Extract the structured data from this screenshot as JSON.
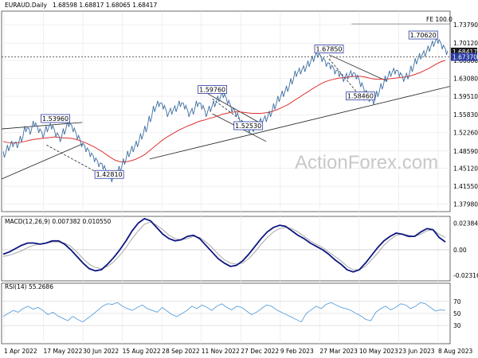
{
  "chart_data": [
    {
      "type": "line",
      "panel": "price",
      "symbol_label": "EURAUD.Daily",
      "ohlc_header": "1.68598 1.68817 1.68065 1.68417",
      "ylim": [
        1.365,
        1.765
      ],
      "y_ticks": [
        "1.73790",
        "1.70120",
        "1.66660",
        "1.63080",
        "1.59510",
        "1.55830",
        "1.52260",
        "1.48590",
        "1.45120",
        "1.41550",
        "1.37980"
      ],
      "last_prices": [
        "1.68417",
        "1.67370"
      ],
      "fe_label": "FE 100.0",
      "fe_level": 1.7395,
      "horizontal_level": 1.6737,
      "annotations": [
        {
          "text": "1.53960",
          "x": 0.12,
          "y": 1.5396
        },
        {
          "text": "1.42810",
          "x": 0.24,
          "y": 1.4281
        },
        {
          "text": "1.59760",
          "x": 0.47,
          "y": 1.5976
        },
        {
          "text": "1.52530",
          "x": 0.55,
          "y": 1.5253
        },
        {
          "text": "1.67850",
          "x": 0.73,
          "y": 1.6785
        },
        {
          "text": "1.58460",
          "x": 0.8,
          "y": 1.5846
        },
        {
          "text": "1.70620",
          "x": 0.94,
          "y": 1.7062
        }
      ],
      "price_series": [
        1.479,
        1.492,
        1.5,
        1.498,
        1.51,
        1.53,
        1.525,
        1.54,
        1.528,
        1.518,
        1.53,
        1.535,
        1.52,
        1.51,
        1.525,
        1.54,
        1.53,
        1.515,
        1.5,
        1.49,
        1.48,
        1.47,
        1.46,
        1.455,
        1.44,
        1.43,
        1.437,
        1.45,
        1.465,
        1.48,
        1.49,
        1.5,
        1.515,
        1.53,
        1.55,
        1.57,
        1.58,
        1.575,
        1.56,
        1.565,
        1.57,
        1.58,
        1.575,
        1.56,
        1.565,
        1.58,
        1.575,
        1.56,
        1.57,
        1.58,
        1.59,
        1.598,
        1.585,
        1.57,
        1.56,
        1.545,
        1.535,
        1.527,
        1.53,
        1.54,
        1.545,
        1.55,
        1.56,
        1.575,
        1.59,
        1.6,
        1.61,
        1.625,
        1.64,
        1.645,
        1.65,
        1.66,
        1.67,
        1.678,
        1.67,
        1.66,
        1.655,
        1.645,
        1.64,
        1.63,
        1.635,
        1.64,
        1.635,
        1.62,
        1.605,
        1.59,
        1.585,
        1.6,
        1.615,
        1.63,
        1.64,
        1.645,
        1.64,
        1.63,
        1.635,
        1.65,
        1.665,
        1.675,
        1.68,
        1.69,
        1.7,
        1.706,
        1.695,
        1.684
      ],
      "ma_series": [
        1.505,
        1.503,
        1.502,
        1.502,
        1.503,
        1.505,
        1.507,
        1.509,
        1.51,
        1.511,
        1.512,
        1.513,
        1.514,
        1.513,
        1.512,
        1.512,
        1.511,
        1.509,
        1.506,
        1.503,
        1.499,
        1.495,
        1.49,
        1.485,
        1.479,
        1.473,
        1.468,
        1.465,
        1.464,
        1.465,
        1.467,
        1.47,
        1.474,
        1.479,
        1.486,
        1.493,
        1.5,
        1.507,
        1.513,
        1.518,
        1.523,
        1.528,
        1.532,
        1.536,
        1.539,
        1.543,
        1.546,
        1.548,
        1.551,
        1.553,
        1.556,
        1.559,
        1.561,
        1.563,
        1.564,
        1.564,
        1.563,
        1.562,
        1.561,
        1.561,
        1.561,
        1.562,
        1.563,
        1.566,
        1.569,
        1.573,
        1.577,
        1.582,
        1.588,
        1.593,
        1.599,
        1.604,
        1.61,
        1.615,
        1.62,
        1.624,
        1.627,
        1.629,
        1.631,
        1.632,
        1.633,
        1.634,
        1.635,
        1.635,
        1.634,
        1.632,
        1.63,
        1.629,
        1.629,
        1.629,
        1.63,
        1.631,
        1.632,
        1.633,
        1.634,
        1.636,
        1.639,
        1.642,
        1.646,
        1.65,
        1.655,
        1.66,
        1.664,
        1.667
      ],
      "trendlines": [
        {
          "name": "rising-support",
          "from": [
            0.33,
            1.47
          ],
          "to": [
            1.0,
            1.615
          ],
          "style": "solid"
        },
        {
          "name": "early-channel-upper",
          "from": [
            0.0,
            1.53
          ],
          "to": [
            0.18,
            1.543
          ],
          "style": "solid"
        },
        {
          "name": "early-channel-lower",
          "from": [
            0.0,
            1.43
          ],
          "to": [
            0.18,
            1.5
          ],
          "style": "solid"
        },
        {
          "name": "dashed-descent",
          "from": [
            0.1,
            1.498
          ],
          "to": [
            0.24,
            1.43
          ],
          "style": "dashed"
        },
        {
          "name": "wedge-upper",
          "from": [
            0.46,
            1.6
          ],
          "to": [
            0.58,
            1.54
          ],
          "style": "solid"
        },
        {
          "name": "wedge-lower",
          "from": [
            0.47,
            1.56
          ],
          "to": [
            0.59,
            1.505
          ],
          "style": "solid"
        },
        {
          "name": "dashed-mid",
          "from": [
            0.47,
            1.59
          ],
          "to": [
            0.56,
            1.53
          ],
          "style": "dashed"
        },
        {
          "name": "channel-2-upper",
          "from": [
            0.73,
            1.678
          ],
          "to": [
            0.86,
            1.625
          ],
          "style": "solid"
        },
        {
          "name": "channel-2-dashed",
          "from": [
            0.73,
            1.67
          ],
          "to": [
            0.81,
            1.584
          ],
          "style": "dashed"
        }
      ]
    },
    {
      "type": "line",
      "panel": "macd",
      "title": "MACD(12,26,9) 0.007382 0.010550",
      "y_ticks": [
        "0.023841",
        "0.00",
        "-0.023164"
      ],
      "ylim": [
        -0.028,
        0.03
      ],
      "macd_series": [
        -0.004,
        -0.002,
        0.001,
        0.004,
        0.006,
        0.006,
        0.005,
        0.006,
        0.008,
        0.008,
        0.005,
        0.0,
        -0.006,
        -0.012,
        -0.017,
        -0.019,
        -0.018,
        -0.013,
        -0.007,
        0.0,
        0.008,
        0.017,
        0.024,
        0.028,
        0.026,
        0.02,
        0.014,
        0.01,
        0.008,
        0.009,
        0.012,
        0.013,
        0.01,
        0.004,
        -0.002,
        -0.008,
        -0.012,
        -0.015,
        -0.014,
        -0.01,
        -0.004,
        0.003,
        0.01,
        0.016,
        0.02,
        0.022,
        0.021,
        0.017,
        0.013,
        0.01,
        0.006,
        0.003,
        0.0,
        -0.004,
        -0.009,
        -0.013,
        -0.018,
        -0.02,
        -0.018,
        -0.012,
        -0.005,
        0.002,
        0.008,
        0.012,
        0.015,
        0.014,
        0.012,
        0.012,
        0.016,
        0.019,
        0.018,
        0.011,
        0.007
      ],
      "signal_series": [
        -0.006,
        -0.005,
        -0.003,
        -0.001,
        0.002,
        0.004,
        0.005,
        0.006,
        0.007,
        0.007,
        0.006,
        0.003,
        -0.002,
        -0.008,
        -0.013,
        -0.016,
        -0.017,
        -0.015,
        -0.011,
        -0.005,
        0.002,
        0.01,
        0.017,
        0.023,
        0.025,
        0.022,
        0.018,
        0.013,
        0.01,
        0.009,
        0.01,
        0.012,
        0.011,
        0.007,
        0.002,
        -0.004,
        -0.009,
        -0.012,
        -0.013,
        -0.012,
        -0.008,
        -0.002,
        0.005,
        0.011,
        0.016,
        0.019,
        0.02,
        0.019,
        0.016,
        0.012,
        0.008,
        0.005,
        0.002,
        -0.002,
        -0.006,
        -0.01,
        -0.015,
        -0.018,
        -0.018,
        -0.015,
        -0.009,
        -0.003,
        0.004,
        0.009,
        0.013,
        0.014,
        0.013,
        0.012,
        0.014,
        0.017,
        0.018,
        0.014,
        0.011
      ]
    },
    {
      "type": "line",
      "panel": "rsi",
      "title": "RSI(14) 55.2686",
      "y_ticks": [
        "70",
        "50",
        "30"
      ],
      "ylim": [
        0,
        100
      ],
      "rsi_series": [
        45,
        50,
        55,
        52,
        58,
        62,
        57,
        60,
        55,
        48,
        52,
        46,
        42,
        38,
        45,
        40,
        36,
        42,
        48,
        55,
        62,
        66,
        65,
        68,
        62,
        58,
        55,
        60,
        64,
        58,
        55,
        52,
        60,
        54,
        48,
        45,
        50,
        55,
        62,
        58,
        64,
        60,
        55,
        62,
        66,
        60,
        56,
        62,
        60,
        54,
        48,
        52,
        58,
        64,
        62,
        56,
        52,
        48,
        44,
        40,
        36,
        50,
        56,
        62,
        58,
        65,
        68,
        64,
        60,
        58,
        55,
        50,
        46,
        40,
        38,
        52,
        58,
        62,
        56,
        60,
        66,
        64,
        58,
        62,
        68,
        66,
        60,
        54,
        56,
        55
      ]
    },
    {
      "type": "line",
      "panel": "x-axis",
      "x_ticks": [
        "1 Apr 2022",
        "17 May 2022",
        "30 Jun 2022",
        "15 Aug 2022",
        "28 Sep 2022",
        "11 Nov 2022",
        "27 Dec 2022",
        "9 Feb 2023",
        "27 Mar 2023",
        "10 May 2023",
        "23 Jun 2023",
        "8 Aug 2023"
      ]
    }
  ],
  "watermark": "ActionForex.com",
  "colors": {
    "price": "#3c6ea0",
    "ma": "#e03030",
    "macd": "#0d1680",
    "signal": "#a0a0a0",
    "rsi": "#5aa0dc",
    "highlight": "#2a3aa0"
  }
}
